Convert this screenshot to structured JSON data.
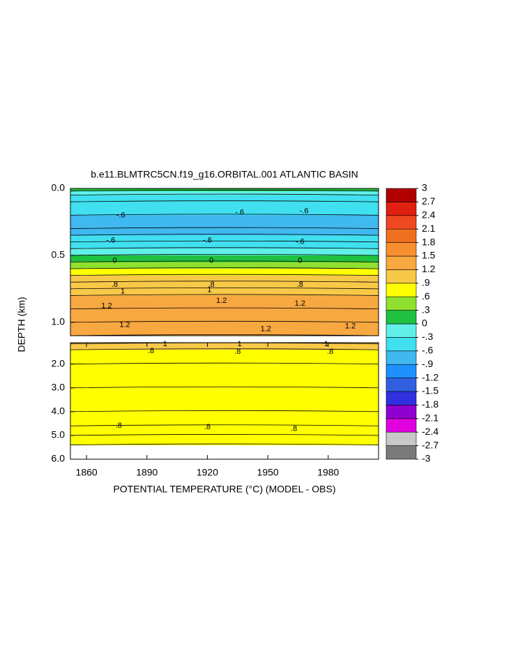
{
  "chart_data": {
    "type": "contour",
    "title": "b.e11.BLMTRC5CN.f19_g16.ORBITAL.001 ATLANTIC BASIN",
    "ylabel": "DEPTH (km)",
    "xlabel": "POTENTIAL TEMPERATURE (°C) (MODEL - OBS)",
    "xlim": [
      1852,
      2005
    ],
    "xticks": [
      1860,
      1890,
      1920,
      1950,
      1980
    ],
    "panels": [
      {
        "ylim": [
          0,
          1.1
        ],
        "yticks": [
          {
            "value": 0,
            "label": "0.0"
          },
          0.5,
          {
            "value": 1,
            "label": "1.0"
          }
        ],
        "depths": [
          0,
          0.02,
          0.05,
          0.1,
          0.2,
          0.3,
          0.35,
          0.4,
          0.45,
          0.5,
          0.55,
          0.6,
          0.65,
          0.7,
          0.75,
          0.8,
          0.9,
          1.0,
          1.1
        ],
        "values": [
          0.3,
          0.1,
          -0.3,
          -0.5,
          -0.6,
          -0.7,
          -0.6,
          -0.5,
          -0.3,
          0,
          0.3,
          0.6,
          0.8,
          1.0,
          1.1,
          1.2,
          1.25,
          1.25,
          1.2
        ],
        "contour_labels": [
          {
            "x": 1877,
            "y": 0.2,
            "text": "-.6"
          },
          {
            "x": 1936,
            "y": 0.18,
            "text": "-.6"
          },
          {
            "x": 1968,
            "y": 0.17,
            "text": "-.6"
          },
          {
            "x": 1872,
            "y": 0.39,
            "text": "-.6"
          },
          {
            "x": 1920,
            "y": 0.39,
            "text": "-.6"
          },
          {
            "x": 1966,
            "y": 0.4,
            "text": "-.6"
          },
          {
            "x": 1874,
            "y": 0.54,
            "text": "0"
          },
          {
            "x": 1922,
            "y": 0.54,
            "text": "0"
          },
          {
            "x": 1966,
            "y": 0.54,
            "text": "0"
          },
          {
            "x": 1874,
            "y": 0.72,
            "text": ".8"
          },
          {
            "x": 1922,
            "y": 0.72,
            "text": ".8"
          },
          {
            "x": 1966,
            "y": 0.72,
            "text": ".8"
          },
          {
            "x": 1878,
            "y": 0.77,
            "text": "1"
          },
          {
            "x": 1921,
            "y": 0.76,
            "text": "1"
          },
          {
            "x": 1870,
            "y": 0.88,
            "text": "1.2"
          },
          {
            "x": 1927,
            "y": 0.84,
            "text": "1.2"
          },
          {
            "x": 1966,
            "y": 0.86,
            "text": "1.2"
          },
          {
            "x": 1879,
            "y": 1.02,
            "text": "1.2"
          },
          {
            "x": 1949,
            "y": 1.05,
            "text": "1.2"
          },
          {
            "x": 1991,
            "y": 1.03,
            "text": "1.2"
          }
        ]
      },
      {
        "ylim": [
          1.1,
          6
        ],
        "yticks": [
          {
            "value": 2,
            "label": "2.0"
          },
          {
            "value": 3,
            "label": "3.0"
          },
          {
            "value": 4,
            "label": "4.0"
          },
          {
            "value": 5,
            "label": "5.0"
          },
          {
            "value": 6,
            "label": "6.0"
          }
        ],
        "depths": [
          1.1,
          1.15,
          1.4,
          2.0,
          3.0,
          4.0,
          4.6,
          5.0,
          5.4
        ],
        "values": [
          1.2,
          1.0,
          0.85,
          0.75,
          0.7,
          0.75,
          0.8,
          0.85,
          0.85
        ],
        "contour_labels": [
          {
            "x": 1899,
            "y": 1.16,
            "text": "1"
          },
          {
            "x": 1936,
            "y": 1.16,
            "text": "1"
          },
          {
            "x": 1979,
            "y": 1.16,
            "text": "1"
          },
          {
            "x": 1892,
            "y": 1.45,
            "text": ".8"
          },
          {
            "x": 1935,
            "y": 1.48,
            "text": ".8"
          },
          {
            "x": 1981,
            "y": 1.48,
            "text": ".8"
          },
          {
            "x": 1876,
            "y": 4.6,
            "text": ".8"
          },
          {
            "x": 1920,
            "y": 4.65,
            "text": ".8"
          },
          {
            "x": 1963,
            "y": 4.72,
            "text": ".8"
          }
        ]
      }
    ],
    "colorbar": {
      "ticks": [
        3,
        2.7,
        2.4,
        2.1,
        1.8,
        1.5,
        1.2,
        {
          "value": 0.9,
          "label": ".9"
        },
        {
          "value": 0.6,
          "label": ".6"
        },
        {
          "value": 0.3,
          "label": ".3"
        },
        0,
        {
          "value": -0.3,
          "label": "-.3"
        },
        {
          "value": -0.6,
          "label": "-.6"
        },
        {
          "value": -0.9,
          "label": "-.9"
        },
        -1.2,
        -1.5,
        -1.8,
        -2.1,
        -2.4,
        -2.7,
        -3
      ],
      "colors": [
        "#7a7a7a",
        "#c8c8c8",
        "#e000e0",
        "#9000d0",
        "#3030e0",
        "#3060e0",
        "#1e90ff",
        "#40b8f0",
        "#40e0f0",
        "#60f0e8",
        "#20c040",
        "#90e030",
        "#ffff00",
        "#f8c848",
        "#f8a840",
        "#f89030",
        "#f07020",
        "#f04820",
        "#e02010",
        "#b00000"
      ]
    }
  }
}
